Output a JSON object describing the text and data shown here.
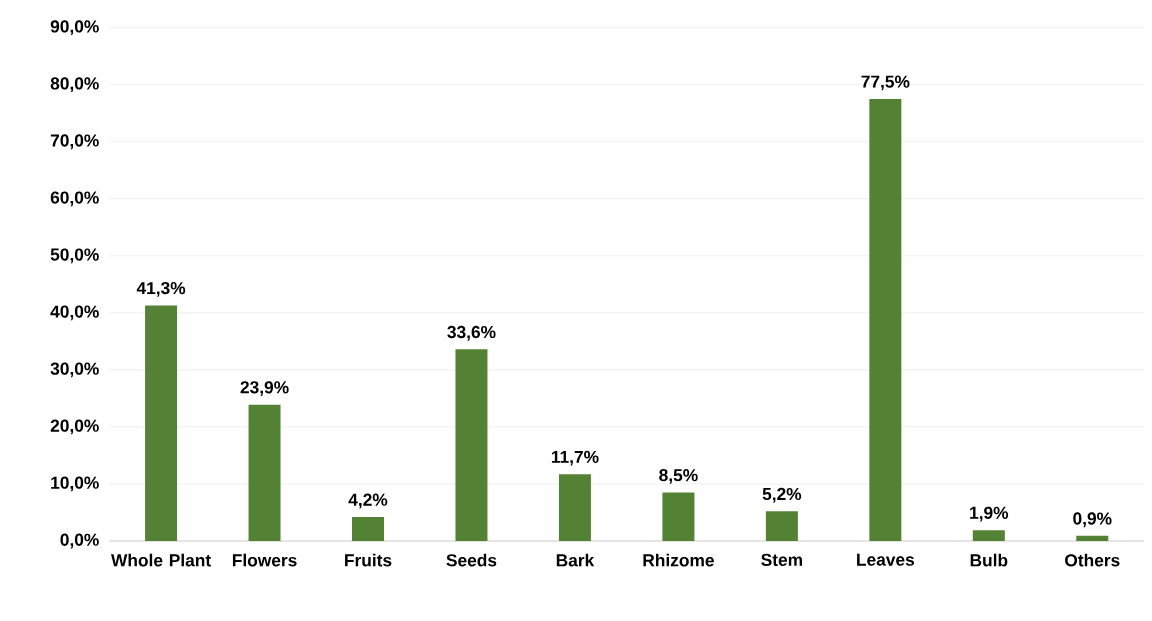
{
  "chart_data": {
    "type": "bar",
    "categories": [
      "Whole Plant",
      "Flowers",
      "Fruits",
      "Seeds",
      "Bark",
      "Rhizome",
      "Stem",
      "Leaves",
      "Bulb",
      "Others"
    ],
    "values": [
      41.3,
      23.9,
      4.2,
      33.6,
      11.7,
      8.5,
      5.2,
      77.5,
      1.9,
      0.9
    ],
    "value_labels": [
      "41,3%",
      "23,9%",
      "4,2%",
      "33,6%",
      "11,7%",
      "8,5%",
      "5,2%",
      "77,5%",
      "1,9%",
      "0,9%"
    ],
    "color": "#548235",
    "ylim": [
      0,
      90
    ],
    "yticks": [
      {
        "value": 0,
        "label": "0,0%"
      },
      {
        "value": 10,
        "label": "10,0%"
      },
      {
        "value": 20,
        "label": "20,0%"
      },
      {
        "value": 30,
        "label": "30,0%"
      },
      {
        "value": 40,
        "label": "40,0%"
      },
      {
        "value": 50,
        "label": "50,0%"
      },
      {
        "value": 60,
        "label": "60,0%"
      },
      {
        "value": 70,
        "label": "70,0%"
      },
      {
        "value": 80,
        "label": "80,0%"
      },
      {
        "value": 90,
        "label": "90,0%"
      }
    ],
    "grid": "y"
  }
}
